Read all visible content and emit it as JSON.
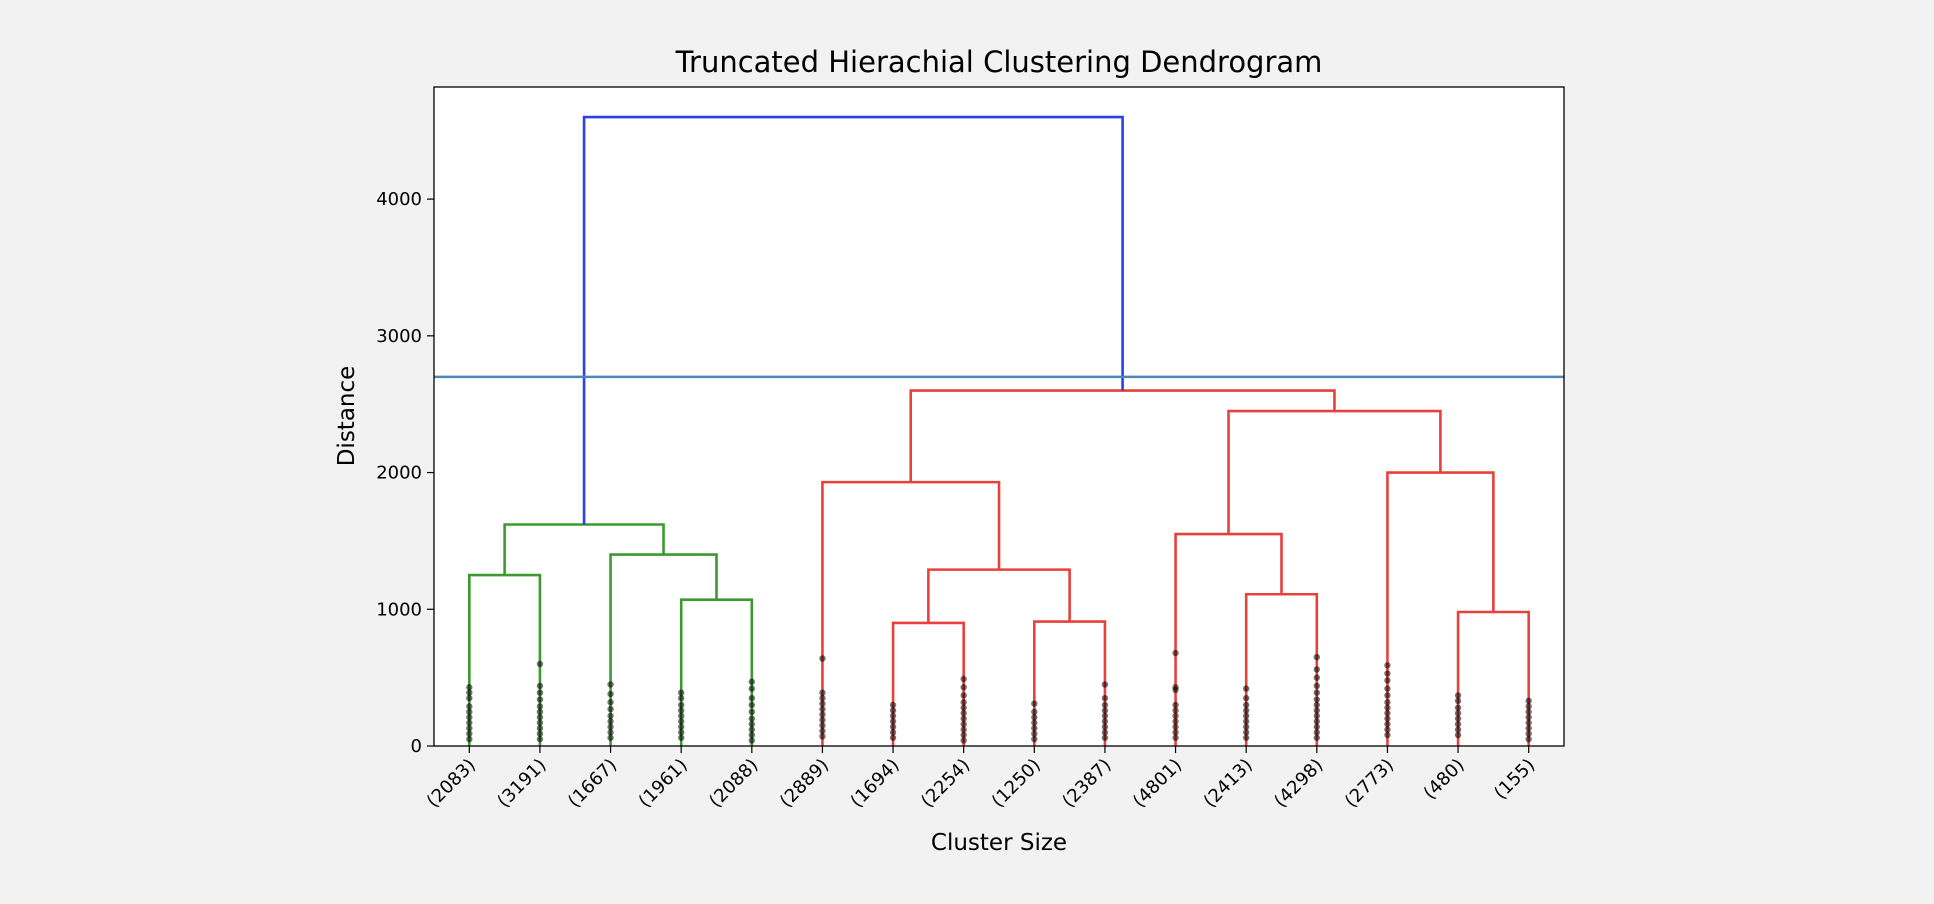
{
  "chart_data": {
    "type": "dendrogram",
    "title": "Truncated Hierachial Clustering Dendrogram",
    "xlabel": "Cluster Size",
    "ylabel": "Distance",
    "ylim": [
      0,
      4820
    ],
    "yticks": [
      0,
      1000,
      2000,
      3000,
      4000
    ],
    "grid": false,
    "leaves": [
      "(2083)",
      "(3191)",
      "(1667)",
      "(1961)",
      "(2088)",
      "(2889)",
      "(1694)",
      "(2254)",
      "(1250)",
      "(2387)",
      "(4801)",
      "(2413)",
      "(4298)",
      "(2773)",
      "(480)",
      "(155)"
    ],
    "cut_line": {
      "y": 2700,
      "color": "#4f86b8"
    },
    "links": [
      {
        "left": 0,
        "right": 1,
        "height": 1250,
        "color": "#3a9a2e"
      },
      {
        "left": 3,
        "right": 4,
        "height": 1070,
        "color": "#3a9a2e"
      },
      {
        "left": 2,
        "right": "c1",
        "height": 1400,
        "color": "#3a9a2e"
      },
      {
        "left": "c0",
        "right": "c2",
        "height": 1620,
        "color": "#3a9a2e"
      },
      {
        "left": 6,
        "right": 7,
        "height": 900,
        "color": "#e8413c"
      },
      {
        "left": 8,
        "right": 9,
        "height": 910,
        "color": "#e8413c"
      },
      {
        "left": "c4",
        "right": "c5",
        "height": 1290,
        "color": "#e8413c"
      },
      {
        "left": 5,
        "right": "c6",
        "height": 1930,
        "color": "#e8413c"
      },
      {
        "left": 11,
        "right": 12,
        "height": 1110,
        "color": "#e8413c"
      },
      {
        "left": 10,
        "right": "c8",
        "height": 1550,
        "color": "#e8413c"
      },
      {
        "left": 14,
        "right": 15,
        "height": 980,
        "color": "#e8413c"
      },
      {
        "left": 13,
        "right": "c10",
        "height": 2000,
        "color": "#e8413c"
      },
      {
        "left": "c9",
        "right": "c11",
        "height": 2450,
        "color": "#e8413c"
      },
      {
        "left": "c7",
        "right": "c12",
        "height": 2600,
        "color": "#e8413c"
      },
      {
        "left": "c3",
        "right": "c13",
        "height": 4600,
        "color": "#2f3fe8"
      }
    ],
    "leaf_dots": [
      [
        430,
        390,
        350,
        290,
        250,
        210,
        170,
        130,
        90,
        50
      ],
      [
        600,
        440,
        390,
        340,
        290,
        250,
        210,
        170,
        130,
        90,
        50
      ],
      [
        450,
        380,
        320,
        270,
        220,
        180,
        140,
        100,
        60
      ],
      [
        390,
        350,
        300,
        260,
        220,
        180,
        140,
        100,
        60
      ],
      [
        470,
        420,
        350,
        300,
        250,
        200,
        160,
        120,
        80,
        40
      ],
      [
        640,
        390,
        350,
        310,
        270,
        230,
        190,
        150,
        110,
        70
      ],
      [
        300,
        260,
        220,
        180,
        140,
        100,
        60
      ],
      [
        490,
        430,
        370,
        320,
        280,
        240,
        200,
        160,
        120,
        80,
        40
      ],
      [
        310,
        250,
        210,
        170,
        130,
        90,
        50
      ],
      [
        450,
        350,
        300,
        260,
        220,
        180,
        140,
        100,
        60
      ],
      [
        680,
        430,
        410,
        300,
        260,
        220,
        180,
        140,
        100,
        60
      ],
      [
        420,
        350,
        300,
        260,
        220,
        180,
        140,
        100,
        60
      ],
      [
        650,
        560,
        500,
        440,
        390,
        340,
        300,
        260,
        220,
        180,
        140,
        100,
        60
      ],
      [
        590,
        530,
        480,
        420,
        370,
        320,
        280,
        240,
        200,
        160,
        120,
        80
      ],
      [
        370,
        330,
        280,
        240,
        200,
        160,
        120,
        80
      ],
      [
        330,
        290,
        250,
        210,
        170,
        130,
        90,
        50
      ]
    ]
  }
}
